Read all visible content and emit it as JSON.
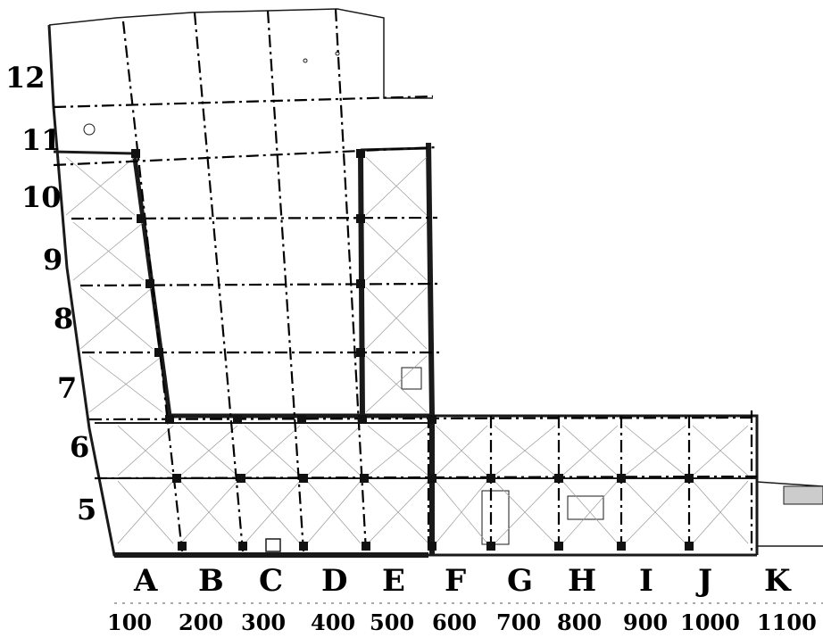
{
  "column_labels": [
    "A",
    "B",
    "C",
    "D",
    "E",
    "F",
    "G",
    "H",
    "I",
    "J",
    "K"
  ],
  "row_labels": [
    "12",
    "11",
    "10",
    "9",
    "8",
    "7",
    "6",
    "5"
  ],
  "scale_labels": [
    "100",
    "200",
    "300",
    "400",
    "500",
    "600",
    "700",
    "800",
    "900",
    "1000",
    "1100"
  ],
  "colors": {
    "ink": "#000000",
    "wall": "#1a1a1a",
    "hatch": "#9a9a9a",
    "background": "#ffffff"
  }
}
